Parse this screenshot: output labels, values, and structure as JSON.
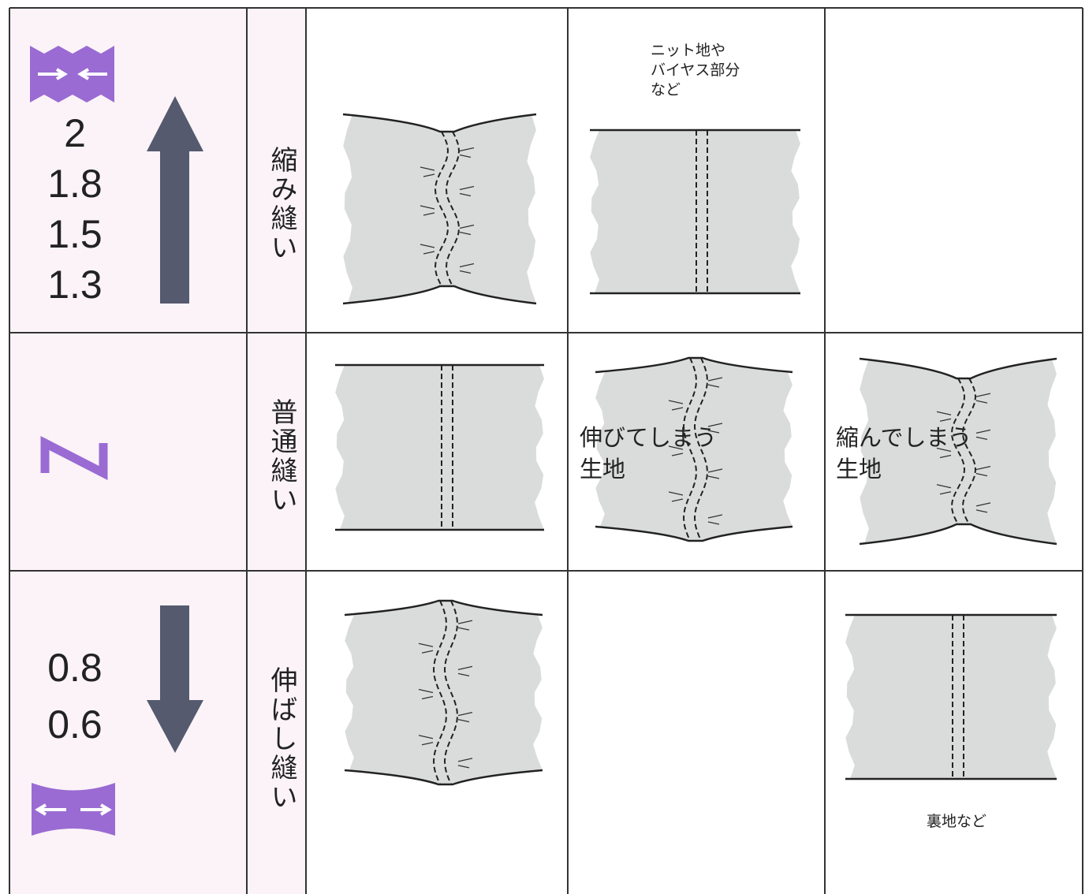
{
  "rows": [
    {
      "values": [
        2,
        1.8,
        1.5,
        1.3
      ],
      "label": "縮み縫い",
      "note": [
        "ニット地や",
        "バイヤス部分",
        "など"
      ]
    },
    {
      "label": "普通縫い",
      "overlays": [
        [
          "伸びてしまう",
          "生地"
        ],
        [
          "縮んでしまう",
          "生地"
        ]
      ]
    },
    {
      "values": [
        0.8,
        0.6
      ],
      "label": "伸ばし縫い",
      "note": [
        "裏地など"
      ]
    }
  ]
}
